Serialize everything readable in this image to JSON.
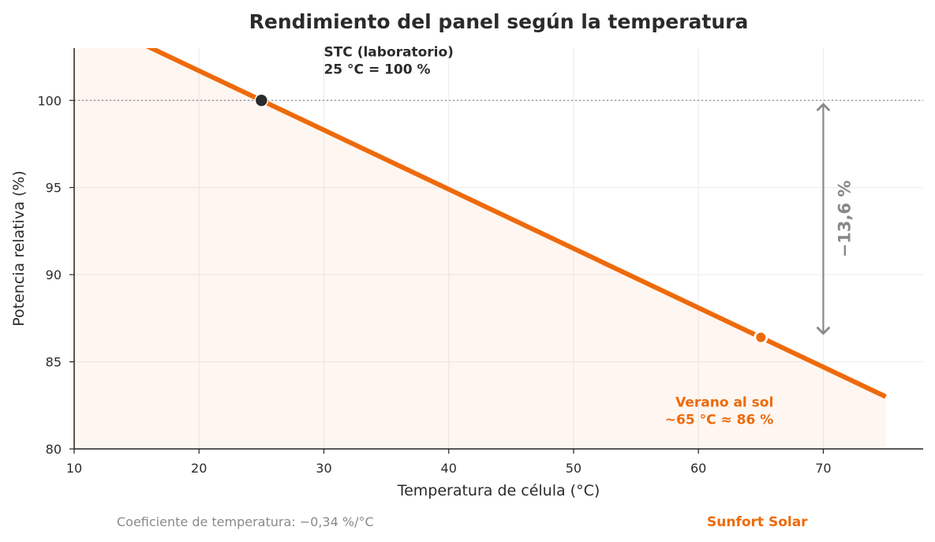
{
  "chart_data": {
    "type": "line",
    "title": "Rendimiento del panel según la temperatura",
    "xlabel": "Temperatura de célula (°C)",
    "ylabel": "Potencia relativa (%)",
    "xlim": [
      10,
      78
    ],
    "ylim": [
      80,
      103
    ],
    "xticks": [
      10,
      20,
      30,
      40,
      50,
      60,
      70
    ],
    "yticks": [
      80,
      85,
      90,
      95,
      100
    ],
    "grid": true,
    "series": [
      {
        "x": [
          10,
          25,
          75
        ],
        "y": [
          105.1,
          100,
          83
        ],
        "color": "#ee6a0a"
      }
    ],
    "reference_line": {
      "y": 100
    },
    "highlight_points": [
      {
        "x": 25,
        "y": 100,
        "color": "#2b2b2b"
      },
      {
        "x": 65,
        "y": 86.4,
        "color": "#ee6a0a"
      }
    ],
    "annotations": [
      {
        "lines": [
          "STC (laboratorio)",
          "25 °C = 100 %"
        ],
        "color": "#2b2b2b",
        "x": 30,
        "y": 102.8
      },
      {
        "lines": [
          "Verano al sol",
          "~65 °C ≈ 86 %"
        ],
        "color": "#ee6a0a",
        "x": 65,
        "y": 82.7
      }
    ],
    "delta": {
      "label": "−13,6 %",
      "x": 70,
      "y_from": 100,
      "y_to": 86.4,
      "color": "#888888"
    }
  },
  "footer": {
    "note": "Coeficiente de temperatura: −0,34 %/°C",
    "brand": "Sunfort Solar",
    "brand_color": "#ee6a0a"
  }
}
